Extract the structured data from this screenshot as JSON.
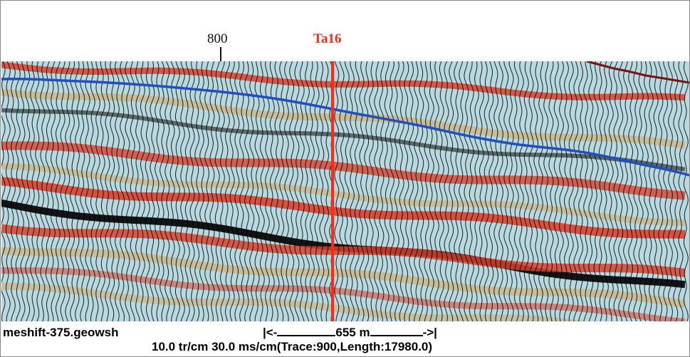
{
  "header": {
    "trace_label": "800",
    "well_label": "Ta16"
  },
  "footer": {
    "filename": "meshift-375.geowsh",
    "scale_left": "|<-",
    "scale_value": "655 m",
    "scale_right": "->|",
    "params": "10.0 tr/cm 30.0 ms/cm(Trace:900,Length:17980.0)"
  },
  "colors": {
    "well_line": "#ff2a14",
    "horizon_blue": "#1f4fc0",
    "horizon_darkred": "#7a1212",
    "peak_red": "#d8412c",
    "peak_tan": "#c9b58a",
    "trough_cyan": "#b9dde3",
    "trough_black": "#0a0a0a",
    "wiggle": "#000000"
  }
}
